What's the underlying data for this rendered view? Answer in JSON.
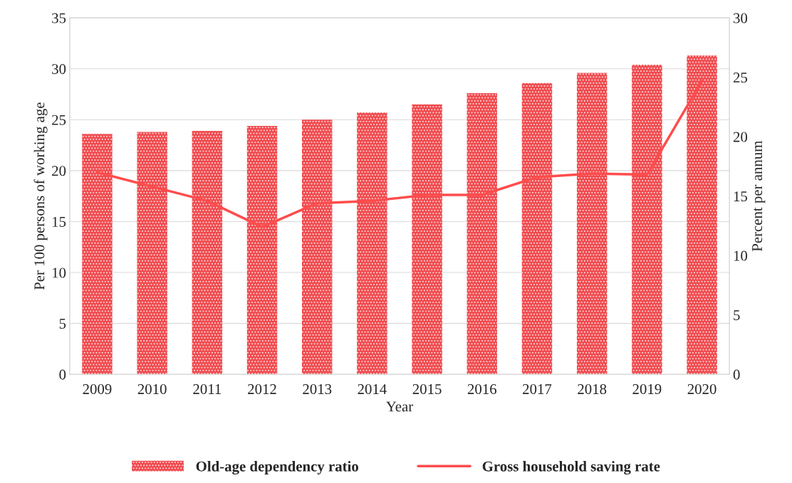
{
  "chart_data": {
    "type": "bar",
    "xlabel": "Year",
    "ylabel": "Per 100 persons of working age",
    "y2label": "Percent per annum",
    "categories": [
      "2009",
      "2010",
      "2011",
      "2012",
      "2013",
      "2014",
      "2015",
      "2016",
      "2017",
      "2018",
      "2019",
      "2020"
    ],
    "series": [
      {
        "name": "Old-age dependency ratio",
        "color": "#f04a4e",
        "values": [
          23.6,
          23.8,
          23.9,
          24.4,
          25.0,
          25.7,
          26.5,
          27.6,
          28.6,
          29.6,
          30.4,
          31.3
        ]
      },
      {
        "name": "Gross household saving rate",
        "type": "line",
        "axis": "y2",
        "color": "#ff4c4c",
        "values": [
          17.0,
          15.8,
          14.6,
          12.4,
          14.4,
          14.6,
          15.1,
          15.1,
          16.6,
          16.9,
          16.8,
          24.7
        ]
      }
    ],
    "ylim": [
      0,
      35
    ],
    "yticks": [
      0,
      5,
      10,
      15,
      20,
      25,
      30,
      35
    ],
    "y2lim": [
      0,
      30
    ],
    "y2ticks": [
      0,
      5,
      10,
      15,
      20,
      25,
      30
    ],
    "grid": "y",
    "legend": "bottom",
    "marker": "none",
    "line_style": "solid"
  }
}
